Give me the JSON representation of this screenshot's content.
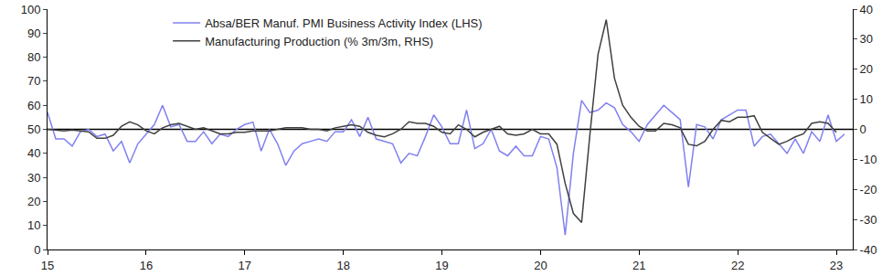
{
  "chart_data": {
    "type": "line",
    "categories": [
      "15",
      null,
      null,
      null,
      null,
      null,
      null,
      null,
      null,
      null,
      null,
      null,
      "16",
      null,
      null,
      null,
      null,
      null,
      null,
      null,
      null,
      null,
      null,
      null,
      "17",
      null,
      null,
      null,
      null,
      null,
      null,
      null,
      null,
      null,
      null,
      null,
      "18",
      null,
      null,
      null,
      null,
      null,
      null,
      null,
      null,
      null,
      null,
      null,
      "19",
      null,
      null,
      null,
      null,
      null,
      null,
      null,
      null,
      null,
      null,
      null,
      "20",
      null,
      null,
      null,
      null,
      null,
      null,
      null,
      null,
      null,
      null,
      null,
      "21",
      null,
      null,
      null,
      null,
      null,
      null,
      null,
      null,
      null,
      null,
      null,
      "22",
      null,
      null,
      null,
      null,
      null,
      null,
      null,
      null,
      null,
      null,
      null,
      "23",
      null
    ],
    "series": [
      {
        "name": "Absa/BER Manuf. PMI Business Activity Index (LHS)",
        "color": "#8080f0",
        "axis": "y",
        "values": [
          57,
          46,
          46,
          43,
          49,
          50,
          47,
          48,
          41,
          45,
          36,
          44,
          48,
          52,
          60,
          51,
          52,
          45,
          45,
          49,
          44,
          48,
          47,
          50,
          52,
          53,
          41,
          50,
          44,
          35,
          41,
          44,
          45,
          46,
          45,
          49,
          49,
          54,
          47,
          55,
          46,
          45,
          44,
          36,
          40,
          39,
          47,
          56,
          51,
          44,
          44,
          58,
          42,
          44,
          50,
          41,
          39,
          43,
          39,
          39,
          47,
          46,
          34,
          6,
          40,
          62,
          57,
          58,
          61,
          59,
          52,
          49,
          45,
          52,
          56,
          60,
          57,
          54,
          26,
          52,
          51,
          46,
          54,
          56,
          58,
          58,
          43,
          47,
          48,
          44,
          40,
          46,
          40,
          49,
          45,
          56,
          45,
          48
        ]
      },
      {
        "name": "Manufacturing Production (% 3m/3m, RHS)",
        "color": "#404040",
        "axis": "y2",
        "values": [
          0,
          -0.3,
          -0.5,
          -0.2,
          -0.4,
          -0.8,
          -3,
          -3,
          -2,
          1,
          2.5,
          1.5,
          -0.5,
          -1.5,
          0.5,
          1.5,
          2,
          1,
          0,
          0.5,
          -0.5,
          -1.5,
          -1.5,
          -1,
          -1,
          -0.5,
          -0.5,
          -0.5,
          0,
          0.5,
          0.5,
          0.5,
          0,
          0,
          -0.5,
          0.5,
          1,
          1.5,
          1,
          -1,
          -2,
          -2.5,
          -1.5,
          0,
          2.5,
          2,
          2,
          1,
          -1,
          -1.5,
          1.5,
          0,
          -2.5,
          -1,
          0,
          1,
          -1.5,
          -2,
          -1.5,
          0,
          -1.5,
          -1.5,
          -5,
          -18,
          -28,
          -31,
          -2,
          25,
          36.5,
          17,
          8,
          4,
          1,
          -0.5,
          -0.5,
          2,
          1.5,
          0.5,
          -5,
          -5.5,
          -4,
          0,
          3,
          2.5,
          4,
          4,
          4.5,
          -1,
          -3,
          -5,
          -4,
          -2.5,
          -1.5,
          2,
          2.5,
          2,
          -1,
          null
        ]
      }
    ],
    "hline": 50,
    "ylim": [
      0,
      100
    ],
    "yticks": [
      0,
      10,
      20,
      30,
      40,
      50,
      60,
      70,
      80,
      90,
      100
    ],
    "y2lim": [
      -40,
      40
    ],
    "y2ticks": [
      -40,
      -30,
      -20,
      -10,
      0,
      10,
      20,
      30,
      40
    ],
    "grid": false,
    "legend": "upper left"
  }
}
